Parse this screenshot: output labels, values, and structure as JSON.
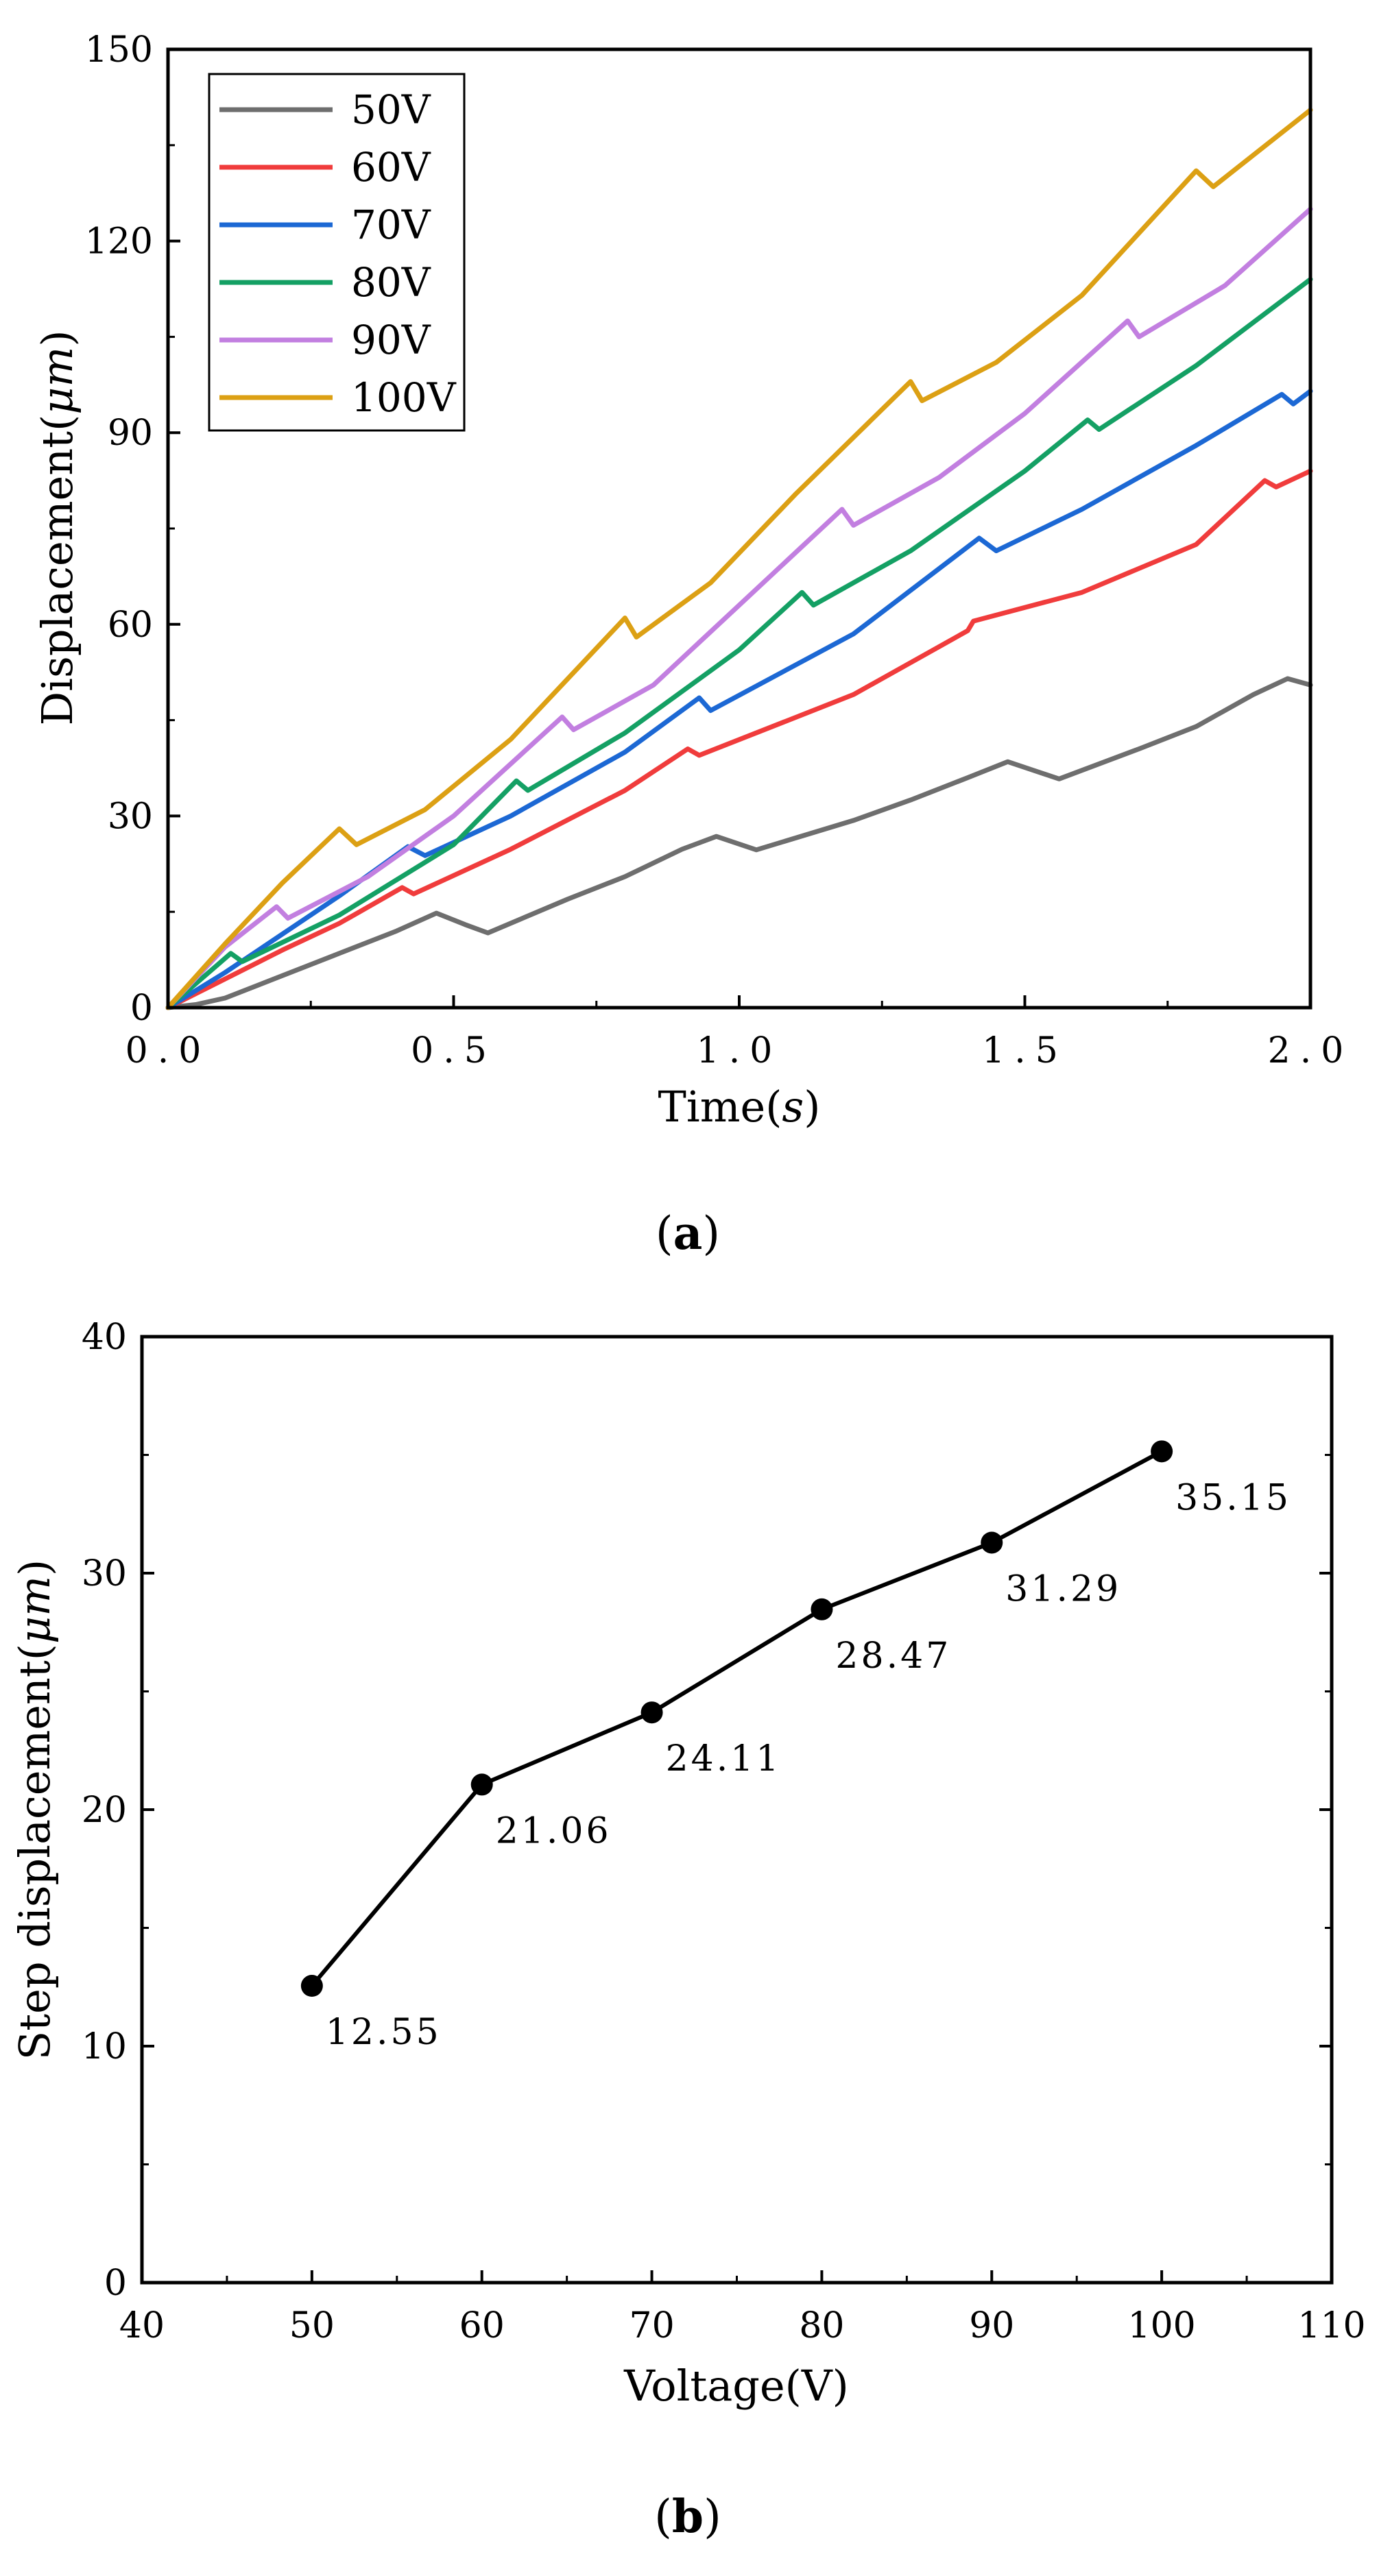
{
  "colors": {
    "50V": "#6e6e6e",
    "60V": "#f03c3c",
    "70V": "#1c68d4",
    "80V": "#14a064",
    "90V": "#c27fe0",
    "100V": "#dca014",
    "marker": "#000000"
  },
  "chart_data": [
    {
      "id": "a",
      "type": "line",
      "caption_open": "(",
      "caption_letter": "a",
      "caption_close": ")",
      "xlabel": "Time(",
      "xlabel_unit": "s",
      "xlabel_close": ")",
      "ylabel": "Displacement(",
      "ylabel_unit": "μm",
      "ylabel_close": ")",
      "xlim": [
        0,
        2
      ],
      "ylim": [
        0,
        150
      ],
      "xticks": [
        0,
        0.5,
        1.0,
        1.5,
        2.0
      ],
      "xtick_labels": [
        "0.0",
        "0.5",
        "1.0",
        "1.5",
        "2.0"
      ],
      "yticks": [
        0,
        30,
        60,
        90,
        120,
        150
      ],
      "ytick_labels": [
        "0",
        "30",
        "60",
        "90",
        "120",
        "150"
      ],
      "legend_position": "top-left",
      "series": [
        {
          "name": "50V",
          "x": [
            0,
            0.05,
            0.1,
            0.2,
            0.3,
            0.4,
            0.47,
            0.52,
            0.56,
            0.7,
            0.8,
            0.9,
            0.96,
            1.03,
            1.2,
            1.3,
            1.4,
            1.47,
            1.52,
            1.56,
            1.7,
            1.8,
            1.9,
            1.96,
            2.0
          ],
          "y": [
            0,
            0.5,
            1.5,
            5,
            8.5,
            12,
            14.8,
            13,
            11.7,
            17,
            20.5,
            24.8,
            26.8,
            24.7,
            29.3,
            32.5,
            36,
            38.5,
            37,
            35.8,
            40.5,
            44,
            49,
            51.5,
            50.5
          ]
        },
        {
          "name": "60V",
          "x": [
            0,
            0.1,
            0.2,
            0.3,
            0.41,
            0.43,
            0.6,
            0.8,
            0.91,
            0.93,
            1.2,
            1.4,
            1.41,
            1.6,
            1.8,
            1.92,
            1.94,
            2.0
          ],
          "y": [
            0,
            4.5,
            9,
            13.2,
            18.8,
            17.8,
            24.8,
            34,
            40.5,
            39.5,
            49,
            59,
            60.5,
            65,
            72.5,
            82.5,
            81.5,
            84
          ]
        },
        {
          "name": "70V",
          "x": [
            0,
            0.1,
            0.2,
            0.3,
            0.42,
            0.45,
            0.6,
            0.8,
            0.93,
            0.95,
            1.2,
            1.42,
            1.45,
            1.6,
            1.8,
            1.95,
            1.97,
            2.0
          ],
          "y": [
            0,
            5.5,
            11.5,
            17.5,
            25.2,
            23.8,
            30,
            40,
            48.5,
            46.5,
            58.5,
            73.5,
            71.5,
            78,
            88,
            96,
            94.5,
            96.5
          ]
        },
        {
          "name": "80V",
          "x": [
            0,
            0.11,
            0.13,
            0.3,
            0.5,
            0.61,
            0.63,
            0.8,
            1.0,
            1.11,
            1.13,
            1.3,
            1.5,
            1.61,
            1.63,
            1.8,
            2.0
          ],
          "y": [
            0,
            8.5,
            7.2,
            14.5,
            25.5,
            35.5,
            34,
            43,
            56,
            65,
            63,
            71.5,
            84,
            92,
            90.5,
            100.5,
            114
          ]
        },
        {
          "name": "90V",
          "x": [
            0,
            0.1,
            0.19,
            0.21,
            0.35,
            0.5,
            0.69,
            0.71,
            0.85,
            1.0,
            1.18,
            1.2,
            1.35,
            1.5,
            1.68,
            1.7,
            1.85,
            2.0
          ],
          "y": [
            0,
            9.5,
            15.8,
            14,
            20.5,
            30,
            45.5,
            43.5,
            50.5,
            63,
            78,
            75.5,
            83,
            93,
            107.5,
            105,
            113,
            125
          ]
        },
        {
          "name": "100V",
          "x": [
            0,
            0.1,
            0.2,
            0.3,
            0.33,
            0.45,
            0.6,
            0.8,
            0.82,
            0.95,
            1.1,
            1.3,
            1.32,
            1.45,
            1.6,
            1.8,
            1.83,
            2.0
          ],
          "y": [
            0,
            10,
            19.5,
            28,
            25.5,
            31,
            42,
            61,
            58,
            66.5,
            80.5,
            98,
            95,
            101,
            111.5,
            131,
            128.5,
            140.5
          ]
        }
      ]
    },
    {
      "id": "b",
      "type": "line",
      "caption_open": "(",
      "caption_letter": "b",
      "caption_close": ")",
      "xlabel": "Voltage(V)",
      "ylabel": "Step displacement(",
      "ylabel_unit": "μm",
      "ylabel_close": ")",
      "xlim": [
        40,
        110
      ],
      "ylim": [
        0,
        40
      ],
      "xticks": [
        40,
        50,
        60,
        70,
        80,
        90,
        100,
        110
      ],
      "xtick_labels": [
        "40",
        "50",
        "60",
        "70",
        "80",
        "90",
        "100",
        "110"
      ],
      "yticks": [
        0,
        10,
        20,
        30,
        40
      ],
      "ytick_labels": [
        "0",
        "10",
        "20",
        "30",
        "40"
      ],
      "series": [
        {
          "name": "Step displacement",
          "x": [
            50,
            60,
            70,
            80,
            90,
            100
          ],
          "y": [
            12.55,
            21.06,
            24.11,
            28.47,
            31.29,
            35.15
          ],
          "labels": [
            "12.55",
            "21.06",
            "24.11",
            "28.47",
            "31.29",
            "35.15"
          ]
        }
      ]
    }
  ]
}
